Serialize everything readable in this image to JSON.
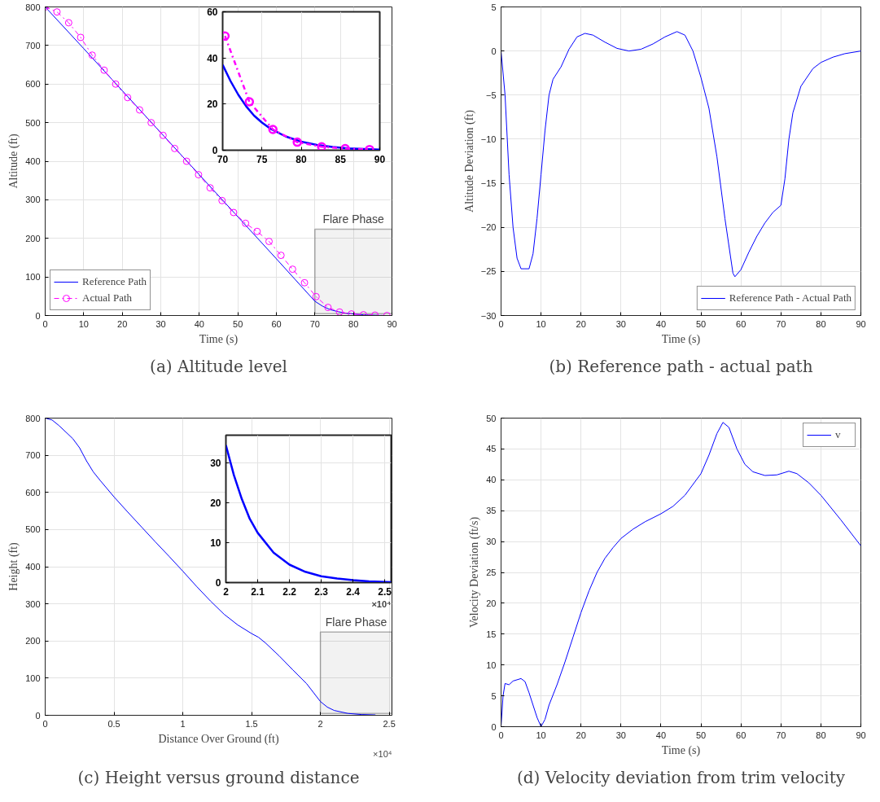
{
  "chart_data": [
    {
      "type": "line",
      "title": "(a) Altitude level",
      "xlabel": "Time (s)",
      "ylabel": "Altitude (ft)",
      "xlim": [
        0,
        90
      ],
      "ylim": [
        0,
        800
      ],
      "xticks": [
        0,
        10,
        20,
        30,
        40,
        50,
        60,
        70,
        80,
        90
      ],
      "yticks": [
        0,
        100,
        200,
        300,
        400,
        500,
        600,
        700,
        800
      ],
      "grid": true,
      "legend": "bottom left",
      "bands": [
        {
          "axis": "x",
          "from": 70,
          "to": 90,
          "label": "Flare Phase"
        }
      ],
      "series": [
        {
          "name": "Reference Path",
          "color": "#0000ff",
          "marker": "none",
          "line_style": "solid",
          "x": [
            0,
            10,
            20,
            30,
            40,
            50,
            60,
            65,
            70,
            72,
            74,
            76,
            78,
            80,
            82,
            85,
            88,
            90
          ],
          "values": [
            800,
            692,
            583,
            474,
            365,
            256,
            147,
            92,
            37,
            24,
            15,
            10,
            6,
            4,
            2,
            1,
            0,
            0
          ]
        },
        {
          "name": "Actual Path",
          "color": "#ff00ff",
          "marker": "circle",
          "line_style": "dashed",
          "x": [
            0,
            3.06,
            6.1,
            9.2,
            12.2,
            15.3,
            18.3,
            21.4,
            24.5,
            27.5,
            30.6,
            33.6,
            36.7,
            39.8,
            42.8,
            45.9,
            48.9,
            52,
            55,
            58.1,
            61.2,
            64.2,
            67.3,
            70.3,
            73.4,
            76.4,
            79.5,
            82.6,
            85.6,
            88.7
          ],
          "values": [
            800,
            787,
            759,
            721,
            675,
            636,
            600,
            565,
            533,
            500,
            467,
            433,
            400,
            365,
            331,
            298,
            267,
            239,
            218,
            192,
            156,
            120,
            85,
            49,
            21,
            9,
            4,
            2,
            1,
            0
          ]
        }
      ]
    },
    {
      "type": "line",
      "xlim": [
        70,
        90
      ],
      "ylim": [
        0,
        60
      ],
      "xticks": [
        70,
        75,
        80,
        85,
        90
      ],
      "yticks": [
        0,
        20,
        40,
        60
      ],
      "grid": true,
      "series": [
        {
          "color": "#0000ff",
          "marker": "none",
          "line_style": "solid",
          "x": [
            70,
            71,
            72,
            73,
            74,
            75,
            76,
            78,
            80,
            82,
            84,
            86,
            88,
            90
          ],
          "values": [
            37,
            30,
            24,
            19,
            15,
            12,
            9.5,
            6,
            3.7,
            2.3,
            1.4,
            0.8,
            0.5,
            0.3
          ]
        },
        {
          "color": "#ff00ff",
          "marker": "circle",
          "line_style": "dashed",
          "x": [
            70.3,
            73.4,
            76.4,
            79.5,
            82.6,
            85.6,
            88.7
          ],
          "values": [
            49.5,
            21,
            9,
            3.5,
            1.5,
            0.7,
            0.3
          ]
        }
      ]
    },
    {
      "type": "line",
      "title": "(b) Reference path - actual path",
      "xlabel": "Time (s)",
      "ylabel": "Altitude Deviation (ft)",
      "xlim": [
        0,
        90
      ],
      "ylim": [
        -30,
        5
      ],
      "xticks": [
        0,
        10,
        20,
        30,
        40,
        50,
        60,
        70,
        80,
        90
      ],
      "yticks": [
        -30,
        -25,
        -20,
        -15,
        -10,
        -5,
        0,
        5
      ],
      "grid": true,
      "legend": "bottom right",
      "series": [
        {
          "name": "Reference Path - Actual Path",
          "color": "#0000ff",
          "x": [
            0,
            1,
            2,
            3,
            4,
            5,
            6,
            7,
            8,
            9,
            10,
            11,
            12,
            13,
            15,
            17,
            19,
            21,
            23,
            26,
            29,
            32,
            35,
            38,
            41,
            44,
            46,
            48,
            50,
            52,
            54,
            56,
            58,
            58.5,
            60,
            62,
            64,
            66,
            68,
            70,
            71,
            72,
            73,
            75,
            78,
            80,
            83,
            86,
            90
          ],
          "values": [
            0,
            -5,
            -14,
            -20,
            -23.5,
            -24.7,
            -24.7,
            -24.7,
            -23,
            -19,
            -14,
            -9,
            -5,
            -3.2,
            -1.8,
            0.2,
            1.6,
            2,
            1.8,
            1,
            0.3,
            0,
            0.2,
            0.8,
            1.6,
            2.2,
            1.8,
            0,
            -3,
            -6.5,
            -12,
            -19,
            -25.2,
            -25.6,
            -24.8,
            -22.8,
            -21,
            -19.5,
            -18.3,
            -17.5,
            -14.5,
            -10,
            -7,
            -4,
            -2,
            -1.3,
            -0.7,
            -0.3,
            0
          ]
        }
      ]
    },
    {
      "type": "line",
      "title": "(c) Height versus ground distance",
      "xlabel": "Distance Over Ground (ft)",
      "ylabel": "Height (ft)",
      "xlim": [
        0,
        2.52
      ],
      "ylim": [
        0,
        800
      ],
      "xticks": [
        0,
        0.5,
        1,
        1.5,
        2,
        2.5
      ],
      "yticks": [
        0,
        100,
        200,
        300,
        400,
        500,
        600,
        700,
        800
      ],
      "grid": true,
      "annotations": [
        "×10⁴"
      ],
      "bands": [
        {
          "axis": "x",
          "from": 2,
          "to": 2.52,
          "label": "Flare Phase"
        }
      ],
      "series": [
        {
          "color": "#0000ff",
          "x": [
            0,
            0.05,
            0.1,
            0.2,
            0.25,
            0.3,
            0.35,
            0.4,
            0.5,
            0.6,
            0.7,
            0.8,
            0.9,
            1,
            1.1,
            1.2,
            1.3,
            1.4,
            1.5,
            1.55,
            1.6,
            1.7,
            1.8,
            1.9,
            2,
            2.05,
            2.1,
            2.2,
            2.3,
            2.4
          ],
          "values": [
            800,
            795,
            780,
            745,
            720,
            685,
            655,
            632,
            588,
            547,
            507,
            467,
            428,
            388,
            347,
            308,
            272,
            243,
            220,
            210,
            195,
            160,
            122,
            85,
            37,
            22,
            13,
            5,
            2,
            1
          ]
        }
      ]
    },
    {
      "type": "line",
      "xlim": [
        2,
        2.52
      ],
      "ylim": [
        0,
        37
      ],
      "xticks": [
        2,
        2.1,
        2.2,
        2.3,
        2.4,
        2.5
      ],
      "yticks": [
        0,
        10,
        20,
        30
      ],
      "grid": true,
      "annotations": [
        "×10⁴"
      ],
      "series": [
        {
          "color": "#0000ff",
          "x": [
            2,
            2.025,
            2.05,
            2.075,
            2.1,
            2.15,
            2.2,
            2.25,
            2.3,
            2.35,
            2.4,
            2.45,
            2.52
          ],
          "values": [
            34.5,
            27,
            21,
            16,
            12.5,
            7.5,
            4.5,
            2.7,
            1.6,
            1,
            0.6,
            0.3,
            0.1
          ]
        }
      ]
    },
    {
      "type": "line",
      "title": "(d) Velocity deviation from trim velocity",
      "xlabel": "Time (s)",
      "ylabel": "Velocity Deviation (ft/s)",
      "xlim": [
        0,
        90
      ],
      "ylim": [
        0,
        50
      ],
      "xticks": [
        0,
        10,
        20,
        30,
        40,
        50,
        60,
        70,
        80,
        90
      ],
      "yticks": [
        0,
        5,
        10,
        15,
        20,
        25,
        30,
        35,
        40,
        45,
        50
      ],
      "grid": true,
      "legend": "top right",
      "series": [
        {
          "name": "v",
          "color": "#0000ff",
          "x": [
            0,
            0.5,
            1,
            2,
            3,
            5,
            6,
            7,
            8,
            9,
            10,
            11,
            12,
            14,
            16,
            18,
            20,
            22,
            24,
            26,
            28,
            30,
            33,
            36,
            40,
            43,
            46,
            50,
            52,
            54,
            55.5,
            57,
            59,
            61,
            63,
            66,
            69,
            72,
            74,
            77,
            80,
            85,
            90
          ],
          "values": [
            0,
            5,
            7,
            6.8,
            7.4,
            7.8,
            7.3,
            5.5,
            3.5,
            1.5,
            0,
            1.2,
            3.5,
            6.8,
            10.5,
            14.5,
            18.5,
            22,
            25,
            27.3,
            29,
            30.5,
            32,
            33.2,
            34.5,
            35.7,
            37.5,
            41,
            44,
            47.5,
            49.3,
            48.5,
            45,
            42.5,
            41.3,
            40.7,
            40.8,
            41.4,
            41,
            39.5,
            37.5,
            33.5,
            29.3
          ]
        }
      ]
    }
  ]
}
